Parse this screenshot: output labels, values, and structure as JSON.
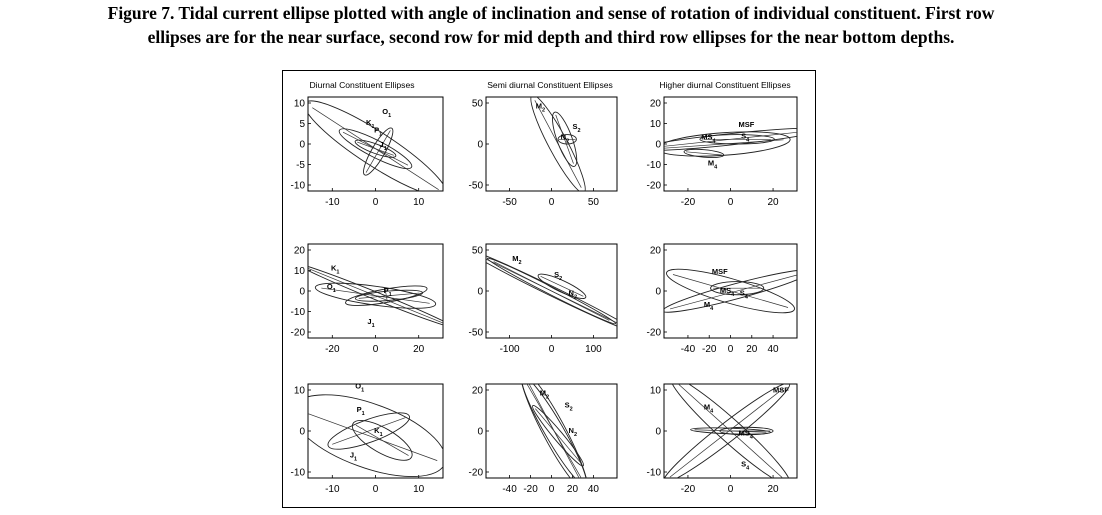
{
  "caption": {
    "line1": "Figure 7. Tidal current ellipse plotted with angle of inclination and sense of rotation of individual constituent. First row",
    "line2": "ellipses are for the near surface, second row for mid depth and third row ellipses for the near bottom depths."
  },
  "figure": {
    "column_titles": [
      "Diurnal Constituent Ellipses",
      "Semi diurnal Constituent Ellipses",
      "Higher diurnal Constituent Ellipses"
    ],
    "panels": [
      {
        "xticks": [
          "-10",
          "0",
          "10"
        ],
        "yticks": [
          "10",
          "5",
          "0",
          "-5",
          "-10"
        ],
        "labels": [
          {
            "t": "O",
            "s": "1"
          },
          {
            "t": "K",
            "s": "1"
          },
          {
            "t": "P",
            "s": "1"
          },
          {
            "t": "J",
            "s": "1"
          }
        ]
      },
      {
        "xticks": [
          "-50",
          "0",
          "50"
        ],
        "yticks": [
          "50",
          "0",
          "-50"
        ],
        "labels": [
          {
            "t": "M",
            "s": "2"
          },
          {
            "t": "S",
            "s": "2"
          },
          {
            "t": "N",
            "s": "2"
          }
        ]
      },
      {
        "xticks": [
          "-20",
          "0",
          "20"
        ],
        "yticks": [
          "20",
          "10",
          "0",
          "-10",
          "-20"
        ],
        "labels": [
          {
            "t": "MS",
            "s": "4"
          },
          {
            "t": "MSF",
            "s": ""
          },
          {
            "t": "S",
            "s": "4"
          },
          {
            "t": "M",
            "s": "4"
          }
        ]
      },
      {
        "xticks": [
          "-20",
          "0",
          "20"
        ],
        "yticks": [
          "20",
          "10",
          "0",
          "-10",
          "-20"
        ],
        "labels": [
          {
            "t": "K",
            "s": "1"
          },
          {
            "t": "O",
            "s": "1"
          },
          {
            "t": "P",
            "s": "1"
          },
          {
            "t": "J",
            "s": "1"
          }
        ]
      },
      {
        "xticks": [
          "-100",
          "0",
          "100"
        ],
        "yticks": [
          "50",
          "0",
          "-50"
        ],
        "labels": [
          {
            "t": "M",
            "s": "2"
          },
          {
            "t": "S",
            "s": "2"
          },
          {
            "t": "N",
            "s": "2"
          }
        ]
      },
      {
        "xticks": [
          "-40",
          "-20",
          "0",
          "20",
          "40"
        ],
        "yticks": [
          "20",
          "0",
          "-20"
        ],
        "labels": [
          {
            "t": "MSF",
            "s": ""
          },
          {
            "t": "MS",
            "s": "4"
          },
          {
            "t": "M",
            "s": "4"
          },
          {
            "t": "S",
            "s": "4"
          }
        ]
      },
      {
        "xticks": [
          "-10",
          "0",
          "10"
        ],
        "yticks": [
          "10",
          "0",
          "-10"
        ],
        "labels": [
          {
            "t": "O",
            "s": "1"
          },
          {
            "t": "P",
            "s": "1"
          },
          {
            "t": "K",
            "s": "1"
          },
          {
            "t": "J",
            "s": "1"
          }
        ]
      },
      {
        "xticks": [
          "-40",
          "-20",
          "0",
          "20",
          "40"
        ],
        "yticks": [
          "20",
          "0",
          "-20"
        ],
        "labels": [
          {
            "t": "M",
            "s": "2"
          },
          {
            "t": "S",
            "s": "2"
          },
          {
            "t": "N",
            "s": "2"
          }
        ]
      },
      {
        "xticks": [
          "-20",
          "0",
          "20"
        ],
        "yticks": [
          "10",
          "0",
          "-10"
        ],
        "labels": [
          {
            "t": "MSF",
            "s": ""
          },
          {
            "t": "M",
            "s": "4"
          },
          {
            "t": "MS",
            "s": "4"
          },
          {
            "t": "S",
            "s": "4"
          }
        ]
      }
    ]
  }
}
